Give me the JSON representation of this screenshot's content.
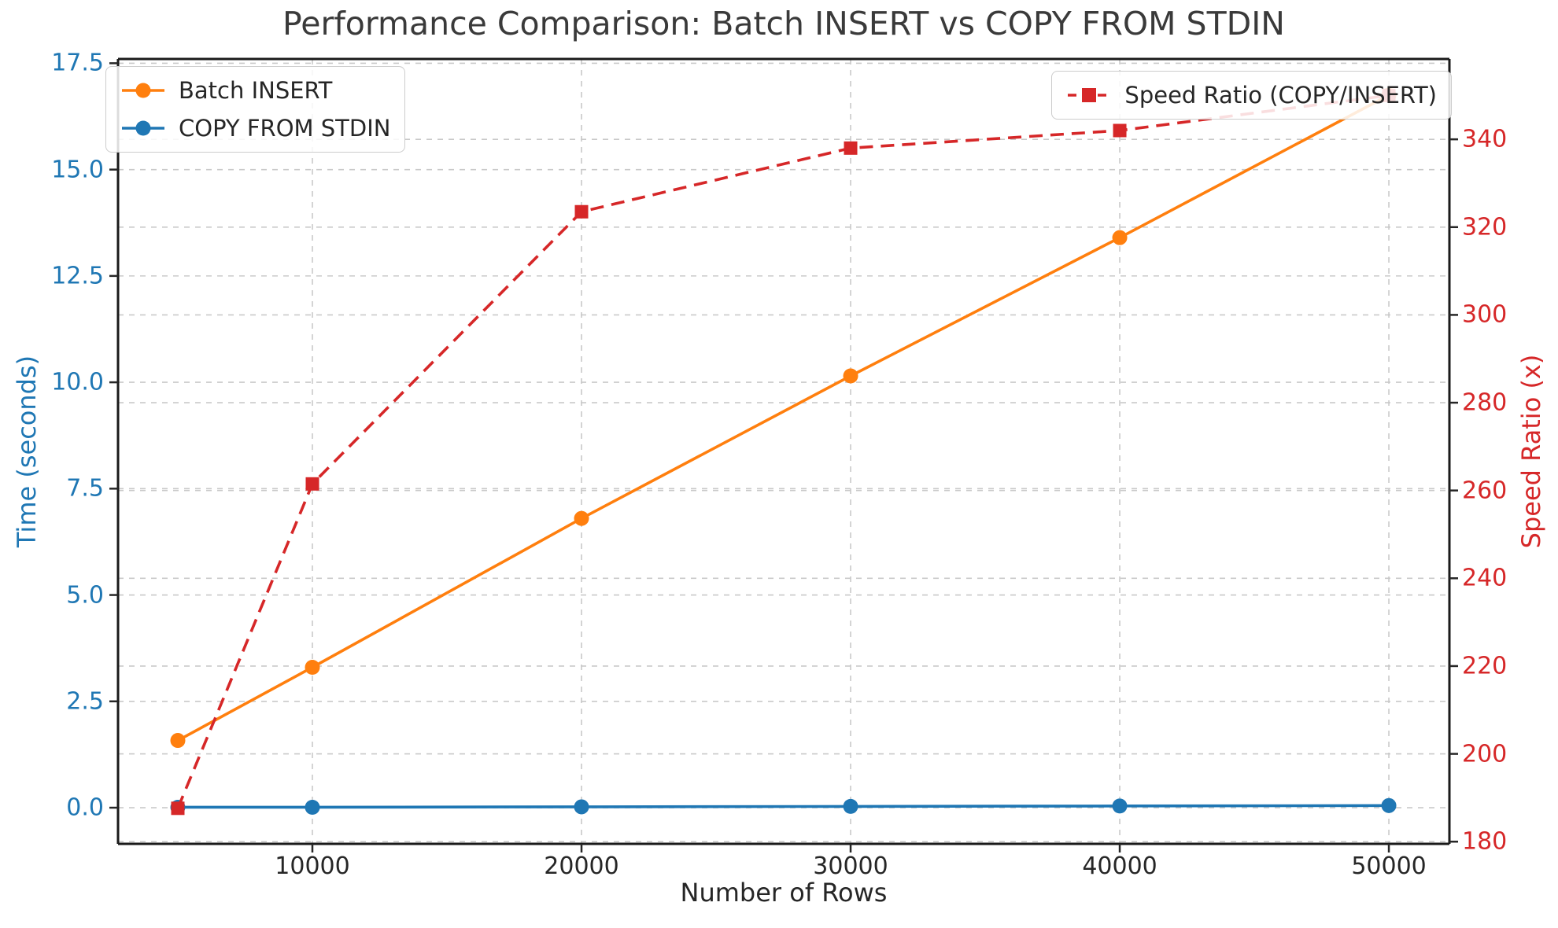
{
  "chart_data": {
    "type": "line",
    "title": "Performance Comparison: Batch INSERT vs COPY FROM STDIN",
    "xlabel": "Number of Rows",
    "ylabel_left": "Time (seconds)",
    "ylabel_right": "Speed Ratio (x)",
    "x": [
      5000,
      10000,
      20000,
      30000,
      40000,
      50000
    ],
    "xlim": [
      2778,
      52250
    ],
    "ylim_left": [
      -0.85,
      17.6
    ],
    "ylim_right": [
      179.5,
      358.3
    ],
    "x_ticks": {
      "values": [
        10000,
        20000,
        30000,
        40000,
        50000
      ],
      "labels": [
        "10000",
        "20000",
        "30000",
        "40000",
        "50000"
      ]
    },
    "y_ticks_left": {
      "values": [
        0,
        2.5,
        5,
        7.5,
        10,
        12.5,
        15,
        17.5
      ],
      "labels": [
        "0.0",
        "2.5",
        "5.0",
        "7.5",
        "10.0",
        "12.5",
        "15.0",
        "17.5"
      ]
    },
    "y_ticks_right": {
      "values": [
        180,
        200,
        220,
        240,
        260,
        280,
        300,
        320,
        340
      ],
      "labels": [
        "180",
        "200",
        "220",
        "240",
        "260",
        "280",
        "300",
        "320",
        "340"
      ]
    },
    "grid": true,
    "grid_style": "dashed",
    "legend_positions": [
      "upper left",
      "upper right"
    ],
    "series": [
      {
        "name": "Batch INSERT",
        "axis": "left",
        "color": "#ff7f0e",
        "line_style": "solid",
        "marker": "circle",
        "values": [
          1.58,
          3.3,
          6.8,
          10.15,
          13.4,
          16.75
        ]
      },
      {
        "name": "COPY FROM STDIN",
        "axis": "left",
        "color": "#1f77b4",
        "line_style": "solid",
        "marker": "circle",
        "values": [
          0.01,
          0.01,
          0.02,
          0.03,
          0.04,
          0.05
        ]
      },
      {
        "name": "Speed Ratio (COPY/INSERT)",
        "axis": "right",
        "color": "#d62728",
        "line_style": "dashed",
        "marker": "square",
        "values": [
          187.6,
          261.5,
          323.5,
          338,
          342,
          350
        ]
      }
    ],
    "colors": {
      "left_axis": "#1f77b4",
      "right_axis": "#d62728",
      "x_axis": "#262626",
      "grid": "#c9c9c9",
      "title": "#3a3a3a",
      "spine": "#1a1a1a",
      "background": "#ffffff"
    }
  }
}
